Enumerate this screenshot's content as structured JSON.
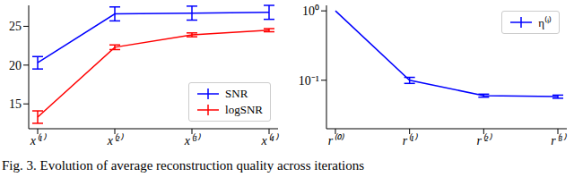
{
  "caption": "Fig. 3. Evolution of average reconstruction quality across iterations",
  "chart_data": [
    {
      "type": "line",
      "categories": [
        "x⁽¹⁾",
        "x⁽²⁾",
        "x⁽³⁾",
        "x⁽⁴⁾"
      ],
      "series": [
        {
          "name": "SNR",
          "color": "#0000ff",
          "values": [
            20.3,
            26.6,
            26.7,
            26.8
          ],
          "errors": [
            0.8,
            0.9,
            0.9,
            0.9
          ]
        },
        {
          "name": "logSNR",
          "color": "#ff0000",
          "values": [
            13.3,
            22.3,
            23.9,
            24.5
          ],
          "errors": [
            0.8,
            0.3,
            0.25,
            0.2
          ]
        }
      ],
      "ylim": [
        11.8,
        27.7
      ],
      "yticks": [
        15,
        20,
        25
      ],
      "legend": "lower right",
      "grid": false
    },
    {
      "type": "line",
      "categories": [
        "r⁽⁰⁾",
        "r⁽¹⁾",
        "r⁽²⁾",
        "r⁽³⁾"
      ],
      "series": [
        {
          "name": "η⁽ⁱ⁾",
          "color": "#0000ff",
          "values": [
            1.0,
            0.1,
            0.06,
            0.058
          ],
          "errors": [
            0,
            0.01,
            0.003,
            0.003
          ]
        }
      ],
      "ylim": [
        0.02,
        1.2
      ],
      "yticks": [
        {
          "value": 0.1,
          "label": "10⁻¹"
        },
        {
          "value": 1,
          "label": "10⁰"
        }
      ],
      "log": "y",
      "legend": "upper right",
      "grid": false
    }
  ]
}
